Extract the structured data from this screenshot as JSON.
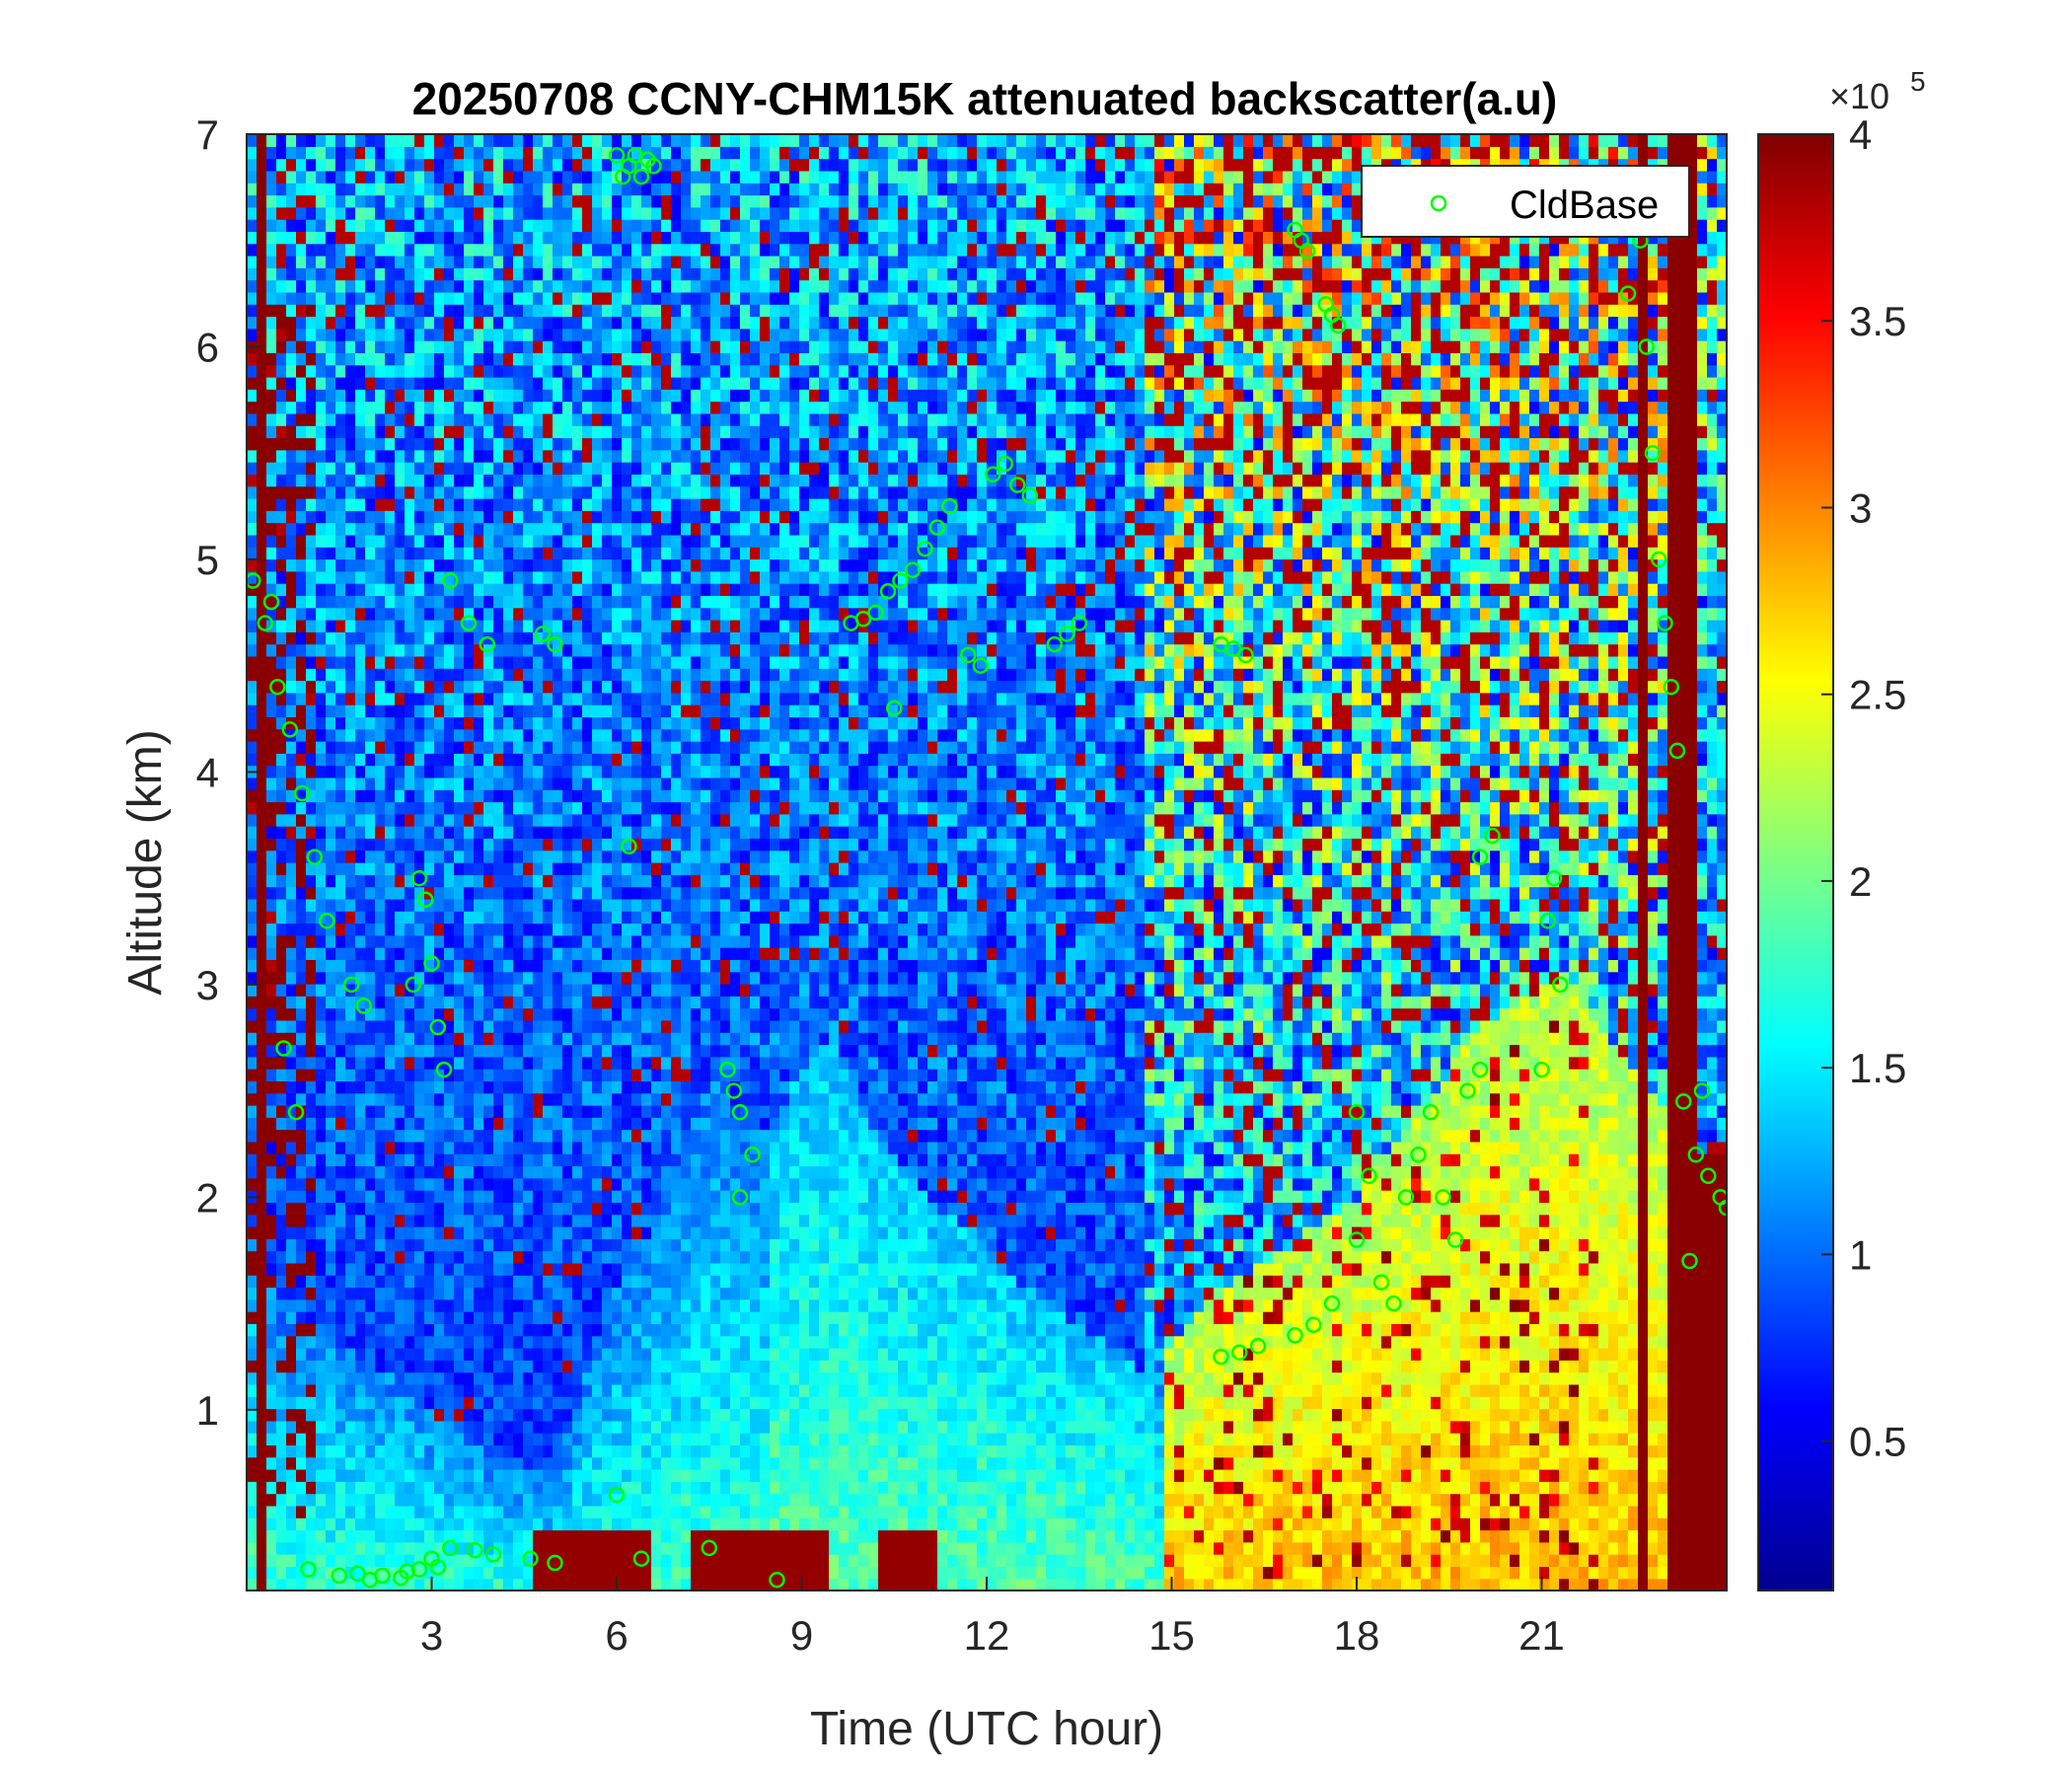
{
  "chart_data": {
    "type": "heatmap",
    "title": "20250708 CCNY-CHM15K attenuated backscatter(a.u)",
    "xlabel": "Time (UTC hour)",
    "ylabel": "Altitude (km)",
    "xlim": [
      0,
      24
    ],
    "ylim": [
      0.15,
      7
    ],
    "xticks": [
      3,
      6,
      9,
      12,
      15,
      18,
      21
    ],
    "yticks": [
      1,
      2,
      3,
      4,
      5,
      6,
      7
    ],
    "colormap": "jet",
    "colorbar": {
      "clim": [
        0.1,
        4
      ],
      "ticks": [
        0.5,
        1,
        1.5,
        2,
        2.5,
        3,
        3.5,
        4
      ],
      "exponent_base": "×10",
      "exponent": "5"
    },
    "legend": {
      "placement": "top-right",
      "entries": [
        {
          "name": "CldBase",
          "marker": "circle",
          "color": "#00ff00"
        }
      ]
    },
    "colors": {
      "cloud_marker": "#00ff00",
      "saturated": "#800000",
      "background": "#0b2a9e"
    },
    "background_profile": {
      "description_hours": [
        0,
        0.5,
        1,
        1.5,
        2,
        2.5,
        3,
        3.5,
        4,
        4.5,
        5,
        5.5,
        6,
        6.5,
        7,
        7.5,
        8,
        8.5,
        9,
        9.5,
        10,
        10.5,
        11,
        11.5,
        12,
        12.5,
        13,
        13.5,
        14,
        14.5,
        15,
        15.5,
        16,
        16.5,
        17,
        17.5,
        18,
        18.5,
        19,
        19.5,
        20,
        20.5,
        21,
        21.5,
        22,
        22.5,
        23,
        23.5,
        24
      ],
      "aerosol_layer_top_km": [
        1.9,
        1.5,
        1.4,
        1.3,
        1.2,
        1.2,
        1.0,
        0.9,
        0.8,
        0.7,
        0.7,
        1.2,
        1.6,
        1.8,
        2.2,
        2.5,
        2.4,
        2.3,
        2.6,
        2.8,
        2.4,
        2.2,
        2.0,
        1.9,
        1.8,
        1.6,
        1.5,
        1.4,
        1.3,
        1.2,
        1.3,
        1.5,
        1.6,
        1.7,
        1.8,
        1.9,
        2.0,
        2.2,
        2.4,
        2.6,
        2.8,
        2.9,
        3.0,
        3.0,
        2.8,
        2.6,
        2.4,
        2.2,
        2.0
      ]
    },
    "cloud_base_clusters": [
      {
        "name": "CldBase",
        "t": [
          0.1,
          0.3,
          0.5,
          0.7,
          0.9,
          1.1,
          1.3,
          0.6,
          0.8,
          0.4
        ],
        "z": [
          4.9,
          4.7,
          4.4,
          4.2,
          3.9,
          3.6,
          3.3,
          2.7,
          2.4,
          4.8
        ]
      },
      {
        "name": "CldBase",
        "t": [
          1.0,
          1.5,
          2.0,
          2.5,
          2.8,
          3.0,
          3.3,
          3.7,
          4.0,
          4.6,
          5.0,
          2.2,
          1.8,
          2.6,
          3.1
        ],
        "z": [
          0.25,
          0.22,
          0.2,
          0.21,
          0.25,
          0.3,
          0.35,
          0.34,
          0.32,
          0.3,
          0.28,
          0.22,
          0.23,
          0.24,
          0.26
        ]
      },
      {
        "name": "CldBase",
        "t": [
          2.9,
          3.0,
          3.1,
          3.2,
          3.3,
          3.6,
          3.9,
          4.8,
          5.0,
          2.7,
          2.8,
          1.7,
          1.9
        ],
        "z": [
          3.4,
          3.1,
          2.8,
          2.6,
          4.9,
          4.7,
          4.6,
          4.65,
          4.6,
          3.0,
          3.5,
          3.0,
          2.9
        ]
      },
      {
        "name": "CldBase",
        "t": [
          6.0,
          6.1,
          6.2,
          6.3,
          6.4,
          6.5,
          6.6,
          6.2,
          6.0,
          6.4
        ],
        "z": [
          6.9,
          6.8,
          6.85,
          6.9,
          6.8,
          6.88,
          6.85,
          3.65,
          0.6,
          0.3
        ]
      },
      {
        "name": "CldBase",
        "t": [
          7.5,
          7.8,
          8.0,
          8.2,
          8.6,
          7.9,
          8.0
        ],
        "z": [
          0.35,
          2.6,
          2.4,
          2.2,
          0.2,
          2.5,
          2.0
        ]
      },
      {
        "name": "CldBase",
        "t": [
          9.8,
          10.0,
          10.2,
          10.4,
          10.6,
          10.8,
          11.0,
          11.2,
          11.4,
          10.5
        ],
        "z": [
          4.7,
          4.72,
          4.75,
          4.85,
          4.9,
          4.95,
          5.05,
          5.15,
          5.25,
          4.3
        ]
      },
      {
        "name": "CldBase",
        "t": [
          11.7,
          11.9,
          12.1,
          12.3,
          12.5,
          12.7
        ],
        "z": [
          4.55,
          4.5,
          5.4,
          5.45,
          5.35,
          5.3
        ]
      },
      {
        "name": "CldBase",
        "t": [
          13.1,
          13.3,
          13.5,
          15.8,
          16.0,
          16.2
        ],
        "z": [
          4.6,
          4.65,
          4.7,
          4.6,
          4.58,
          4.55
        ]
      },
      {
        "name": "CldBase",
        "t": [
          15.8,
          16.1,
          16.4,
          17.0,
          17.3,
          17.6,
          18.0
        ],
        "z": [
          1.25,
          1.27,
          1.3,
          1.35,
          1.4,
          1.5,
          1.8
        ]
      },
      {
        "name": "CldBase",
        "t": [
          17.0,
          17.1,
          17.2,
          17.5,
          17.6,
          17.7
        ],
        "z": [
          6.55,
          6.5,
          6.45,
          6.2,
          6.15,
          6.1
        ]
      },
      {
        "name": "CldBase",
        "t": [
          18.0,
          18.2,
          18.4,
          18.6,
          18.8,
          19.0,
          19.2,
          19.4,
          19.6,
          19.8,
          20.0
        ],
        "z": [
          2.4,
          2.1,
          1.6,
          1.5,
          2.0,
          2.2,
          2.4,
          2.0,
          1.8,
          2.5,
          2.6
        ]
      },
      {
        "name": "CldBase",
        "t": [
          20.0,
          20.2,
          21.1,
          21.2,
          21.3,
          21.0
        ],
        "z": [
          3.6,
          3.7,
          3.3,
          3.5,
          3.0,
          2.6
        ]
      },
      {
        "name": "CldBase",
        "t": [
          22.4,
          22.5,
          22.6,
          22.7,
          22.8,
          22.9,
          23.0,
          23.1,
          23.2
        ],
        "z": [
          6.25,
          6.8,
          6.5,
          6.0,
          5.5,
          5.0,
          4.7,
          4.4,
          4.1
        ]
      },
      {
        "name": "CldBase",
        "t": [
          23.3,
          23.5,
          23.7,
          23.9,
          24.0,
          23.4,
          23.6
        ],
        "z": [
          2.45,
          2.2,
          2.1,
          2.0,
          1.95,
          1.7,
          2.5
        ]
      }
    ]
  }
}
